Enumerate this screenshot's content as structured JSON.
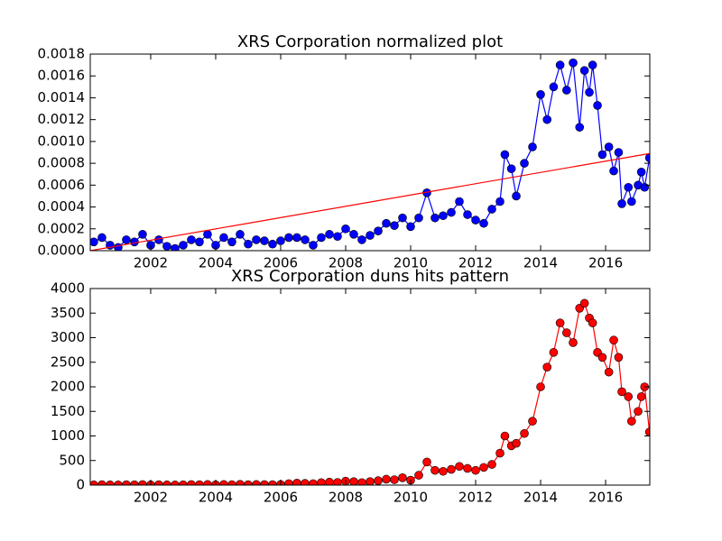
{
  "chart_data": [
    {
      "type": "line",
      "title": "XRS Corporation normalized plot",
      "xlim": [
        2000.14,
        2017.36
      ],
      "xticks": [
        2002,
        2004,
        2006,
        2008,
        2010,
        2012,
        2014,
        2016
      ],
      "ylim": [
        0,
        0.0018
      ],
      "yticks": [
        {
          "value": 0,
          "label": "0.0000"
        },
        {
          "value": 0.0002,
          "label": "0.0002"
        },
        {
          "value": 0.0004,
          "label": "0.0004"
        },
        {
          "value": 0.0006,
          "label": "0.0006"
        },
        {
          "value": 0.0008,
          "label": "0.0008"
        },
        {
          "value": 0.001,
          "label": "0.0010"
        },
        {
          "value": 0.0012,
          "label": "0.0012"
        },
        {
          "value": 0.0014,
          "label": "0.0014"
        },
        {
          "value": 0.0016,
          "label": "0.0016"
        },
        {
          "value": 0.0018,
          "label": "0.0018"
        }
      ],
      "series": [
        {
          "color": "#0000ff",
          "marker": true,
          "x": [
            2000.25,
            2000.5,
            2000.75,
            2001.0,
            2001.25,
            2001.5,
            2001.75,
            2002.0,
            2002.25,
            2002.5,
            2002.75,
            2003.0,
            2003.25,
            2003.5,
            2003.75,
            2004.0,
            2004.25,
            2004.5,
            2004.75,
            2005.0,
            2005.25,
            2005.5,
            2005.75,
            2006.0,
            2006.25,
            2006.5,
            2006.75,
            2007.0,
            2007.25,
            2007.5,
            2007.75,
            2008.0,
            2008.25,
            2008.5,
            2008.75,
            2009.0,
            2009.25,
            2009.5,
            2009.75,
            2010.0,
            2010.25,
            2010.5,
            2010.75,
            2011.0,
            2011.25,
            2011.5,
            2011.75,
            2012.0,
            2012.25,
            2012.5,
            2012.75,
            2012.9,
            2013.1,
            2013.25,
            2013.5,
            2013.75,
            2014.0,
            2014.2,
            2014.4,
            2014.6,
            2014.8,
            2015.0,
            2015.2,
            2015.35,
            2015.5,
            2015.6,
            2015.75,
            2015.9,
            2016.1,
            2016.25,
            2016.4,
            2016.5,
            2016.7,
            2016.8,
            2017.0,
            2017.1,
            2017.2,
            2017.35
          ],
          "values": [
            8e-05,
            0.00012,
            5e-05,
            3e-05,
            0.0001,
            8e-05,
            0.00015,
            5e-05,
            0.0001,
            4e-05,
            2e-05,
            5e-05,
            0.0001,
            8e-05,
            0.00015,
            5e-05,
            0.00012,
            8e-05,
            0.00015,
            6e-05,
            0.0001,
            9e-05,
            6e-05,
            9e-05,
            0.00012,
            0.00012,
            0.0001,
            5e-05,
            0.00012,
            0.00015,
            0.00013,
            0.0002,
            0.00015,
            0.0001,
            0.00014,
            0.00018,
            0.00025,
            0.00023,
            0.0003,
            0.00022,
            0.0003,
            0.00053,
            0.0003,
            0.00032,
            0.00035,
            0.00045,
            0.00033,
            0.00028,
            0.00025,
            0.00038,
            0.00045,
            0.00088,
            0.00075,
            0.0005,
            0.0008,
            0.00095,
            0.00143,
            0.0012,
            0.0015,
            0.0017,
            0.00147,
            0.00172,
            0.00113,
            0.00165,
            0.00145,
            0.0017,
            0.00133,
            0.00088,
            0.00095,
            0.00073,
            0.0009,
            0.00043,
            0.00058,
            0.00045,
            0.0006,
            0.00072,
            0.00058,
            0.00085
          ]
        },
        {
          "color": "#ff0000",
          "marker": false,
          "x": [
            2000.14,
            2017.36
          ],
          "values": [
            0,
            0.00089
          ]
        }
      ]
    },
    {
      "type": "line",
      "title": "XRS Corporation duns hits pattern",
      "xlim": [
        2000.14,
        2017.36
      ],
      "xticks": [
        2002,
        2004,
        2006,
        2008,
        2010,
        2012,
        2014,
        2016
      ],
      "ylim": [
        0,
        4000
      ],
      "yticks": [
        0,
        500,
        1000,
        1500,
        2000,
        2500,
        3000,
        3500,
        4000
      ],
      "series": [
        {
          "color": "#ff0000",
          "marker": true,
          "x": [
            2000.25,
            2000.5,
            2000.75,
            2001.0,
            2001.25,
            2001.5,
            2001.75,
            2002.0,
            2002.25,
            2002.5,
            2002.75,
            2003.0,
            2003.25,
            2003.5,
            2003.75,
            2004.0,
            2004.25,
            2004.5,
            2004.75,
            2005.0,
            2005.25,
            2005.5,
            2005.75,
            2006.0,
            2006.25,
            2006.5,
            2006.75,
            2007.0,
            2007.25,
            2007.5,
            2007.75,
            2008.0,
            2008.25,
            2008.5,
            2008.75,
            2009.0,
            2009.25,
            2009.5,
            2009.75,
            2010.0,
            2010.25,
            2010.5,
            2010.75,
            2011.0,
            2011.25,
            2011.5,
            2011.75,
            2012.0,
            2012.25,
            2012.5,
            2012.75,
            2012.9,
            2013.1,
            2013.25,
            2013.5,
            2013.75,
            2014.0,
            2014.2,
            2014.4,
            2014.6,
            2014.8,
            2015.0,
            2015.2,
            2015.35,
            2015.5,
            2015.6,
            2015.75,
            2015.9,
            2016.1,
            2016.25,
            2016.4,
            2016.5,
            2016.7,
            2016.8,
            2017.0,
            2017.1,
            2017.2,
            2017.35
          ],
          "values": [
            5,
            8,
            5,
            4,
            8,
            6,
            10,
            5,
            8,
            5,
            4,
            6,
            10,
            8,
            12,
            6,
            12,
            9,
            15,
            8,
            12,
            10,
            8,
            12,
            30,
            40,
            35,
            30,
            50,
            60,
            55,
            80,
            70,
            50,
            70,
            90,
            120,
            110,
            150,
            100,
            200,
            470,
            300,
            280,
            320,
            380,
            340,
            300,
            360,
            420,
            650,
            1000,
            800,
            850,
            1050,
            1300,
            2000,
            2400,
            2700,
            3300,
            3100,
            2900,
            3600,
            3700,
            3400,
            3300,
            2700,
            2600,
            2300,
            2950,
            2600,
            1900,
            1800,
            1300,
            1500,
            1800,
            2000,
            1080
          ]
        }
      ]
    }
  ]
}
